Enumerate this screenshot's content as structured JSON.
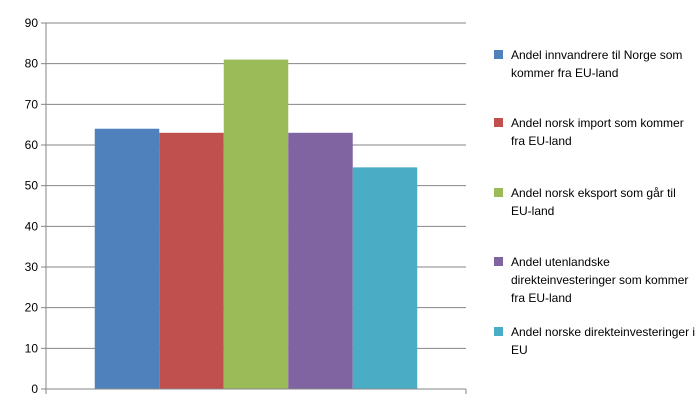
{
  "chart_data": {
    "type": "bar",
    "title": "",
    "xlabel": "",
    "ylabel": "",
    "ylim": [
      0,
      90
    ],
    "yticks": [
      0,
      10,
      20,
      30,
      40,
      50,
      60,
      70,
      80,
      90
    ],
    "grid": true,
    "legend_position": "right",
    "categories": [
      ""
    ],
    "series": [
      {
        "name": "Andel innvandrere til Norge som kommer fra EU-land",
        "values": [
          64
        ],
        "color": "#4f81bd"
      },
      {
        "name": "Andel norsk import som kommer fra EU-land",
        "values": [
          63
        ],
        "color": "#c0504d"
      },
      {
        "name": "Andel norsk eksport som går til EU-land",
        "values": [
          81
        ],
        "color": "#9bbb59"
      },
      {
        "name": "Andel utenlandske direkteinvesteringer som kommer fra EU-land",
        "values": [
          63
        ],
        "color": "#8064a2"
      },
      {
        "name": "Andel norske direkteinvesteringer i EU",
        "values": [
          54.5
        ],
        "color": "#4bacc6"
      }
    ]
  }
}
